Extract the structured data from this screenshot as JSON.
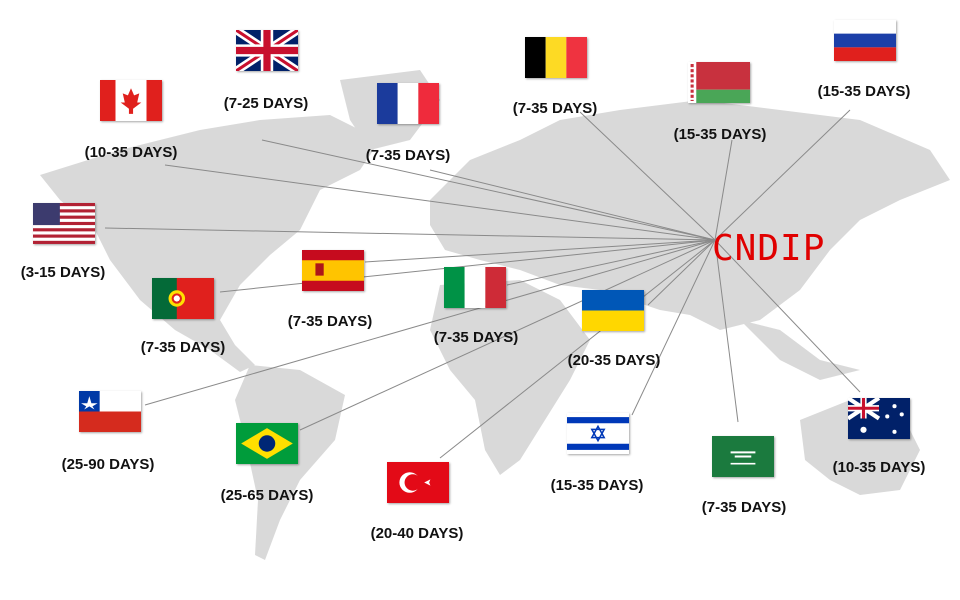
{
  "hub": {
    "label": "CNDIP",
    "color": "#e00000"
  },
  "map_color": "#d9d9d9",
  "line_color": "#8a8a8a",
  "destinations": [
    {
      "id": "uk",
      "country_flag": "united-kingdom-flag",
      "days": "(7-25 DAYS)"
    },
    {
      "id": "canada",
      "country_flag": "canada-flag",
      "days": "(10-35 DAYS)"
    },
    {
      "id": "france",
      "country_flag": "france-flag",
      "days": "(7-35 DAYS)"
    },
    {
      "id": "belgium",
      "country_flag": "belgium-flag",
      "days": "(7-35 DAYS)"
    },
    {
      "id": "belarus",
      "country_flag": "belarus-flag",
      "days": "(15-35 DAYS)"
    },
    {
      "id": "russia",
      "country_flag": "russia-flag",
      "days": "(15-35 DAYS)"
    },
    {
      "id": "usa",
      "country_flag": "usa-flag",
      "days": "(3-15 DAYS)"
    },
    {
      "id": "spain",
      "country_flag": "spain-flag",
      "days": "(7-35 DAYS)"
    },
    {
      "id": "portugal",
      "country_flag": "portugal-flag",
      "days": "(7-35 DAYS)"
    },
    {
      "id": "italy",
      "country_flag": "italy-flag",
      "days": "(7-35 DAYS)"
    },
    {
      "id": "ukraine",
      "country_flag": "ukraine-flag",
      "days": "(20-35 DAYS)"
    },
    {
      "id": "chile",
      "country_flag": "chile-flag",
      "days": "(25-90 DAYS)"
    },
    {
      "id": "brazil",
      "country_flag": "brazil-flag",
      "days": "(25-65 DAYS)"
    },
    {
      "id": "turkey",
      "country_flag": "turkey-flag",
      "days": "(20-40 DAYS)"
    },
    {
      "id": "israel",
      "country_flag": "israel-flag",
      "days": "(15-35 DAYS)"
    },
    {
      "id": "saudi",
      "country_flag": "saudi-arabia-flag",
      "days": "(7-35 DAYS)"
    },
    {
      "id": "australia",
      "country_flag": "australia-flag",
      "days": "(10-35 DAYS)"
    }
  ]
}
